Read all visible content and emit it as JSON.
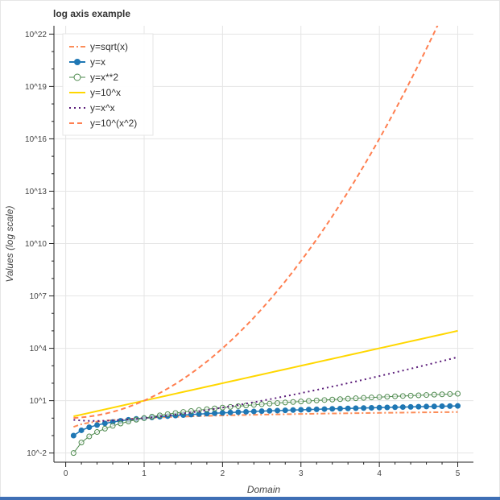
{
  "chart_data": {
    "type": "line",
    "title": "log axis example",
    "xlabel": "Domain",
    "ylabel": "Values (log scale)",
    "xscale": "linear",
    "yscale": "log",
    "xlim": [
      -0.15,
      5.2
    ],
    "ylim": [
      0.003,
      3e+22
    ],
    "xticks": [
      "0",
      "1",
      "2",
      "3",
      "4",
      "5"
    ],
    "yticks": [
      "10^-2",
      "10^1",
      "10^4",
      "10^7",
      "10^10",
      "10^13",
      "10^16",
      "10^19",
      "10^22"
    ],
    "grid": true,
    "legend_position": "top-left",
    "domain": {
      "start": 0.1,
      "stop": 5.0,
      "num": 50
    },
    "series": [
      {
        "name": "y=sqrt(x)",
        "expression": "sqrt(x)",
        "style": "dashdot",
        "color": "#fc8d59"
      },
      {
        "name": "y=x",
        "expression": "x",
        "style": "line+circle",
        "color": "#1f77b4"
      },
      {
        "name": "y=x**2",
        "expression": "x^2",
        "style": "line+open-circle",
        "color": "#4e8a4e"
      },
      {
        "name": "y=10^x",
        "expression": "10^x",
        "style": "solid",
        "color": "#ffd700"
      },
      {
        "name": "y=x^x",
        "expression": "x^x",
        "style": "dotted",
        "color": "#5b1d7a"
      },
      {
        "name": "y=10^(x^2)",
        "expression": "10^(x^2)",
        "style": "dashed",
        "color": "#ff7f50"
      }
    ]
  }
}
